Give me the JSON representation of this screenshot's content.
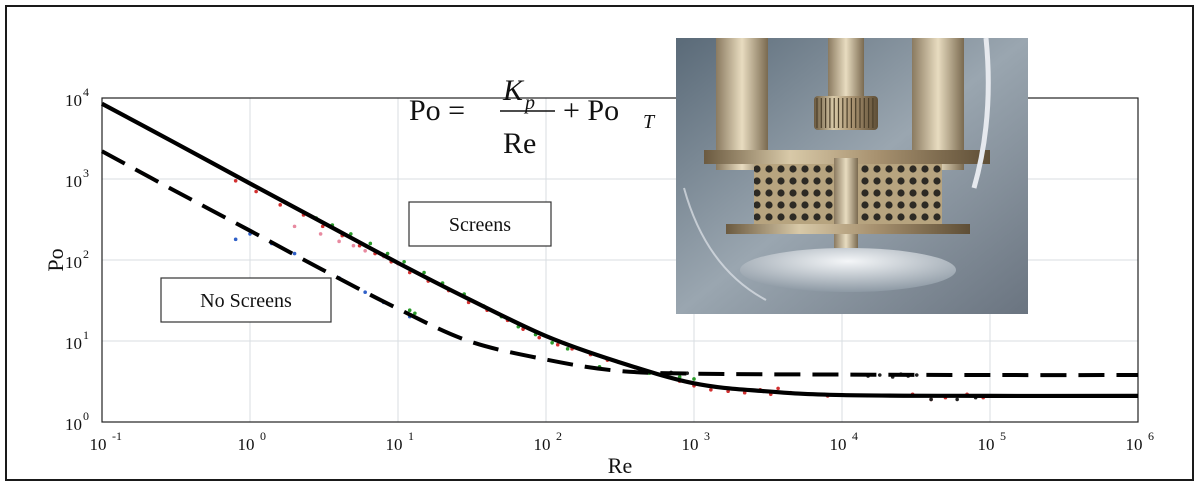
{
  "chart_data": {
    "type": "line",
    "xscale": "log",
    "yscale": "log",
    "xlabel": "Re",
    "ylabel": "Po",
    "xlim": [
      0.1,
      1000000
    ],
    "ylim": [
      1,
      10000
    ],
    "x_tick_labels": [
      {
        "base": "10",
        "exp": "-1"
      },
      {
        "base": "10",
        "exp": "0"
      },
      {
        "base": "10",
        "exp": "1"
      },
      {
        "base": "10",
        "exp": "2"
      },
      {
        "base": "10",
        "exp": "3"
      },
      {
        "base": "10",
        "exp": "4"
      },
      {
        "base": "10",
        "exp": "5"
      },
      {
        "base": "10",
        "exp": "6"
      }
    ],
    "y_tick_labels": [
      {
        "base": "10",
        "exp": "0"
      },
      {
        "base": "10",
        "exp": "1"
      },
      {
        "base": "10",
        "exp": "2"
      },
      {
        "base": "10",
        "exp": "3"
      },
      {
        "base": "10",
        "exp": "4"
      }
    ],
    "grid": true,
    "equation": {
      "lhs": "Po =",
      "numerator": "K",
      "numerator_sub": "p",
      "denominator": "Re",
      "plus": "+ Po",
      "plus_sub": "T"
    },
    "series": [
      {
        "name": "Screens",
        "style": "solid",
        "color": "#000000",
        "x": [
          0.1,
          0.3,
          1,
          3,
          10,
          30,
          100,
          300,
          1000,
          3000,
          10000,
          100000,
          1000000
        ],
        "y": [
          8500,
          2900,
          880,
          300,
          92,
          33,
          11.5,
          5.6,
          3.0,
          2.4,
          2.15,
          2.1,
          2.1
        ]
      },
      {
        "name": "No Screens",
        "style": "dashed",
        "color": "#000000",
        "x": [
          0.1,
          0.3,
          1,
          3,
          10,
          30,
          100,
          300,
          1000,
          10000,
          100000,
          1000000
        ],
        "y": [
          2200,
          740,
          230,
          78,
          25,
          10,
          5.9,
          4.3,
          3.95,
          3.85,
          3.8,
          3.8
        ]
      }
    ],
    "scatter_groups": [
      {
        "color": "#d23030",
        "points": [
          [
            0.8,
            950
          ],
          [
            1.1,
            700
          ],
          [
            1.6,
            480
          ],
          [
            2.3,
            360
          ],
          [
            3.1,
            260
          ],
          [
            4.2,
            200
          ],
          [
            5.5,
            150
          ],
          [
            7,
            120
          ],
          [
            9,
            95
          ],
          [
            12,
            70
          ],
          [
            16,
            55
          ],
          [
            22,
            42
          ],
          [
            30,
            30
          ],
          [
            40,
            24
          ],
          [
            55,
            18
          ],
          [
            70,
            14
          ],
          [
            90,
            11
          ],
          [
            120,
            9
          ],
          [
            150,
            8
          ],
          [
            200,
            6.8
          ],
          [
            260,
            5.8
          ],
          [
            400,
            4.7
          ],
          [
            600,
            3.8
          ],
          [
            800,
            3.2
          ],
          [
            1000,
            2.8
          ],
          [
            1300,
            2.5
          ],
          [
            1700,
            2.4
          ],
          [
            2200,
            2.3
          ],
          [
            2800,
            2.5
          ],
          [
            3300,
            2.2
          ],
          [
            3700,
            2.6
          ],
          [
            4500,
            2.3
          ],
          [
            6000,
            2.2
          ],
          [
            8000,
            2.1
          ],
          [
            30000,
            2.2
          ],
          [
            40000,
            1.9
          ],
          [
            50000,
            2.0
          ],
          [
            60000,
            2.1
          ],
          [
            70000,
            2.2
          ],
          [
            90000,
            2.0
          ]
        ]
      },
      {
        "color": "#2a9a2a",
        "points": [
          [
            2.8,
            330
          ],
          [
            3.6,
            270
          ],
          [
            4.8,
            210
          ],
          [
            6.5,
            160
          ],
          [
            8.5,
            120
          ],
          [
            11,
            95
          ],
          [
            15,
            70
          ],
          [
            20,
            52
          ],
          [
            28,
            38
          ],
          [
            38,
            27
          ],
          [
            50,
            20
          ],
          [
            65,
            15
          ],
          [
            85,
            12
          ],
          [
            110,
            9.5
          ],
          [
            140,
            8
          ],
          [
            13,
            22
          ],
          [
            12,
            24
          ],
          [
            230,
            4.8
          ],
          [
            500,
            4.0
          ],
          [
            800,
            3.6
          ],
          [
            1000,
            3.4
          ]
        ]
      },
      {
        "color": "#3060c8",
        "points": [
          [
            0.8,
            180
          ],
          [
            1.0,
            210
          ],
          [
            1.4,
            160
          ],
          [
            2,
            120
          ],
          [
            4,
            60
          ],
          [
            6,
            40
          ],
          [
            8,
            30
          ],
          [
            12,
            20
          ]
        ]
      },
      {
        "color": "#e88aa0",
        "points": [
          [
            2,
            260
          ],
          [
            3,
            210
          ],
          [
            4,
            170
          ],
          [
            5,
            150
          ],
          [
            6,
            130
          ],
          [
            8,
            110
          ],
          [
            10,
            90
          ]
        ]
      },
      {
        "color": "#222222",
        "points": [
          [
            600,
            3.9
          ],
          [
            700,
            4.1
          ],
          [
            900,
            4.0
          ],
          [
            15000,
            3.7
          ],
          [
            18000,
            3.8
          ],
          [
            22000,
            3.6
          ],
          [
            25000,
            3.9
          ],
          [
            28000,
            3.7
          ],
          [
            32000,
            3.8
          ],
          [
            40000,
            1.9
          ],
          [
            60000,
            1.9
          ],
          [
            80000,
            2.0
          ],
          [
            100000,
            2.1
          ]
        ]
      }
    ],
    "annotations": [
      {
        "text": "Screens"
      },
      {
        "text": "No Screens"
      }
    ]
  }
}
